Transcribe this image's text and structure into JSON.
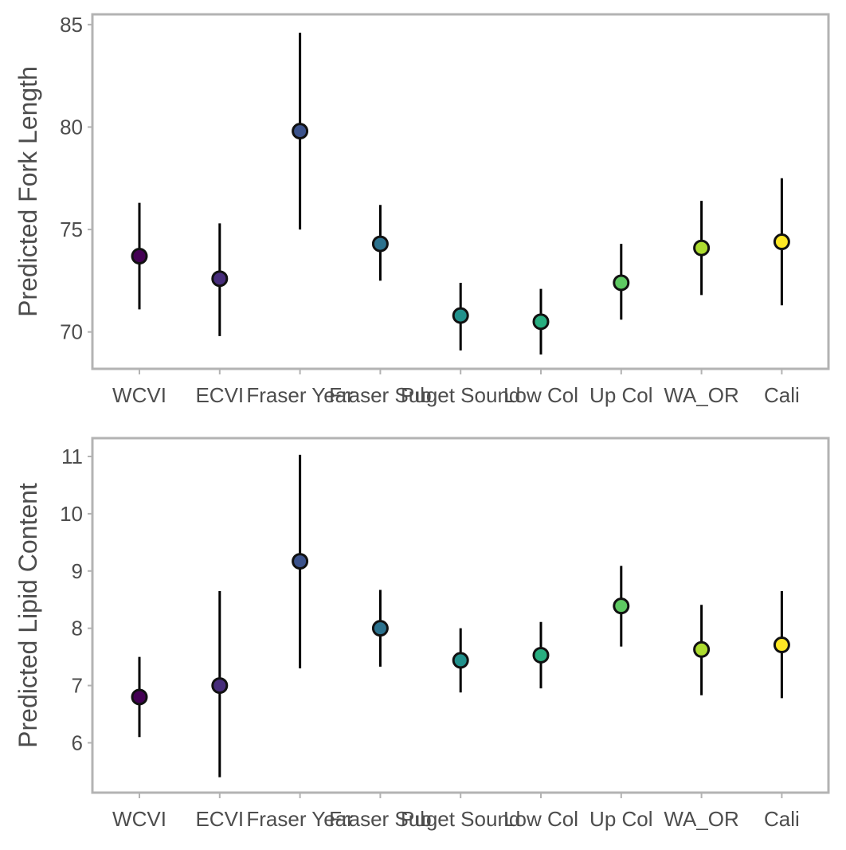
{
  "chart_data": [
    {
      "type": "scatter",
      "ylabel": "Predicted Fork Length",
      "categories": [
        "WCVI",
        "ECVI",
        "Fraser Year",
        "Fraser Sub",
        "Puget Sound",
        "Low Col",
        "Up Col",
        "WA_OR",
        "Cali"
      ],
      "values": [
        73.7,
        72.6,
        79.8,
        74.3,
        70.8,
        70.5,
        72.4,
        74.1,
        74.4
      ],
      "lower": [
        71.1,
        69.8,
        75.0,
        72.5,
        69.1,
        68.9,
        70.6,
        71.8,
        71.3
      ],
      "upper": [
        76.3,
        75.3,
        84.6,
        76.2,
        72.4,
        72.1,
        74.3,
        76.4,
        77.5
      ],
      "yticks": [
        70,
        75,
        80,
        85
      ],
      "ylim": [
        68.2,
        85.5
      ],
      "grid": false
    },
    {
      "type": "scatter",
      "ylabel": "Predicted Lipid Content",
      "categories": [
        "WCVI",
        "ECVI",
        "Fraser Year",
        "Fraser Sub",
        "Puget Sound",
        "Low Col",
        "Up Col",
        "WA_OR",
        "Cali"
      ],
      "values": [
        6.8,
        7.0,
        9.17,
        8.0,
        7.44,
        7.53,
        8.39,
        7.63,
        7.71
      ],
      "lower": [
        6.1,
        5.4,
        7.3,
        7.33,
        6.88,
        6.95,
        7.68,
        6.83,
        6.78
      ],
      "upper": [
        7.5,
        8.65,
        11.03,
        8.67,
        8.0,
        8.11,
        9.09,
        8.41,
        8.65
      ],
      "yticks": [
        6,
        7,
        8,
        9,
        10,
        11
      ],
      "ylim": [
        5.13,
        11.32
      ],
      "grid": false
    }
  ],
  "colors": {
    "points": [
      "#440154",
      "#472d7b",
      "#3b528b",
      "#2c728e",
      "#21918c",
      "#28ae80",
      "#5ec962",
      "#addc30",
      "#fde725"
    ],
    "frame": "#b3b3b3",
    "errorbar": "#000000",
    "text": "#4d4d4d"
  }
}
